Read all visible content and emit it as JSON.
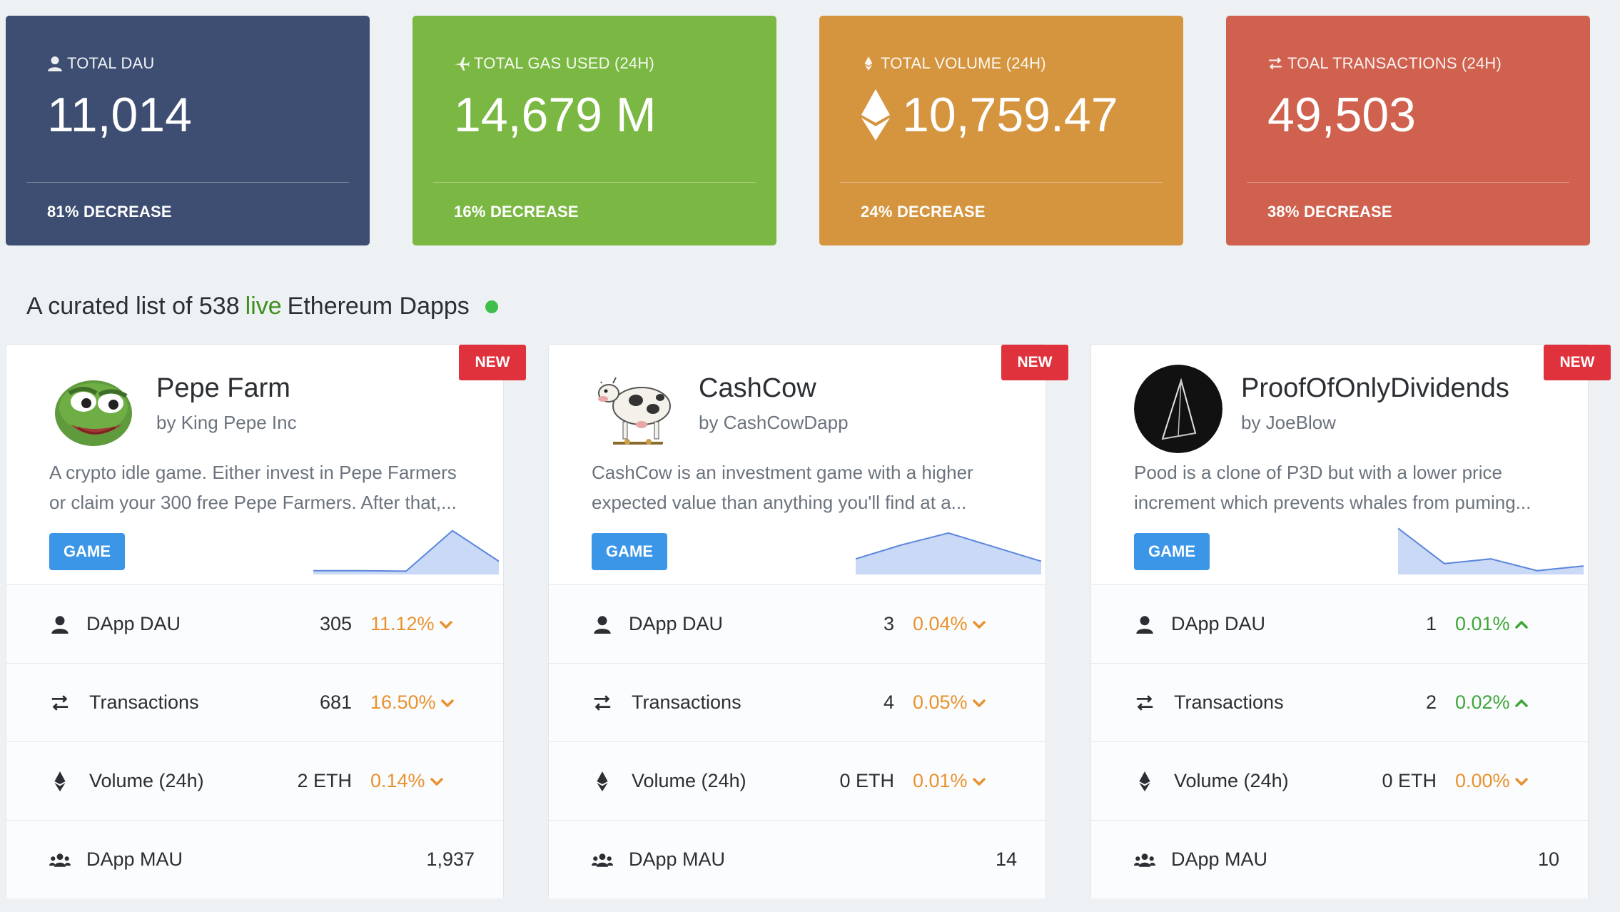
{
  "colors": {
    "dau": "#3d4e72",
    "gas": "#7bb843",
    "volume": "#d5953f",
    "transactions": "#cf614e",
    "decrease": "#e8922f",
    "increase": "#3fa63a",
    "tag": "#3b96e8",
    "new_badge": "#e0323c"
  },
  "stats": [
    {
      "icon": "user-icon",
      "label": "TOTAL DAU",
      "value": "11,014",
      "foot": "81% DECREASE"
    },
    {
      "icon": "plane-icon",
      "label": "TOTAL GAS USED (24H)",
      "value": "14,679 M",
      "foot": "16% DECREASE"
    },
    {
      "icon": "eth-icon",
      "label": "TOTAL VOLUME (24H)",
      "value": "10,759.47",
      "foot": "24% DECREASE"
    },
    {
      "icon": "exchange-icon",
      "label": "TOAL TRANSACTIONS (24H)",
      "value": "49,503",
      "foot": "38% DECREASE"
    }
  ],
  "heading": {
    "prefix": "A curated list of 538",
    "live": "live",
    "suffix": "Ethereum Dapps"
  },
  "cards": [
    {
      "badge": "NEW",
      "title": "Pepe Farm",
      "by": "by King Pepe Inc",
      "desc_line1": "A crypto idle game. Either invest in Pepe Farmers",
      "desc_line2": "or claim your 300 free Pepe Farmers. After that,...",
      "tag": "GAME",
      "sparkline": [
        0.05,
        0.05,
        0.04,
        0.9,
        0.25
      ],
      "rows": {
        "dau": {
          "label": "DApp DAU",
          "value": "305",
          "pct": "11.12%",
          "trend": "down"
        },
        "tx": {
          "label": "Transactions",
          "value": "681",
          "pct": "16.50%",
          "trend": "down"
        },
        "vol": {
          "label": "Volume (24h)",
          "value": "2 ETH",
          "pct": "0.14%",
          "trend": "down"
        },
        "mau": {
          "label": "DApp MAU",
          "value": "1,937"
        }
      }
    },
    {
      "badge": "NEW",
      "title": "CashCow",
      "by": "by CashCowDapp",
      "desc_line1": "CashCow is an investment game with a higher",
      "desc_line2": "expected value than anything you'll find at a...",
      "tag": "GAME",
      "sparkline": [
        0.3,
        0.6,
        0.85,
        0.55,
        0.25
      ],
      "rows": {
        "dau": {
          "label": "DApp DAU",
          "value": "3",
          "pct": "0.04%",
          "trend": "down"
        },
        "tx": {
          "label": "Transactions",
          "value": "4",
          "pct": "0.05%",
          "trend": "down"
        },
        "vol": {
          "label": "Volume (24h)",
          "value": "0 ETH",
          "pct": "0.01%",
          "trend": "down"
        },
        "mau": {
          "label": "DApp MAU",
          "value": "14"
        }
      }
    },
    {
      "badge": "NEW",
      "title": "ProofOfOnlyDividends",
      "by": "by JoeBlow",
      "desc_line1": "Pood is a clone of P3D but with a lower price",
      "desc_line2": "increment which prevents whales from puming...",
      "tag": "GAME",
      "sparkline": [
        0.95,
        0.2,
        0.3,
        0.05,
        0.15
      ],
      "rows": {
        "dau": {
          "label": "DApp DAU",
          "value": "1",
          "pct": "0.01%",
          "trend": "up"
        },
        "tx": {
          "label": "Transactions",
          "value": "2",
          "pct": "0.02%",
          "trend": "up"
        },
        "vol": {
          "label": "Volume (24h)",
          "value": "0 ETH",
          "pct": "0.00%",
          "trend": "down"
        },
        "mau": {
          "label": "DApp MAU",
          "value": "10"
        }
      }
    }
  ]
}
